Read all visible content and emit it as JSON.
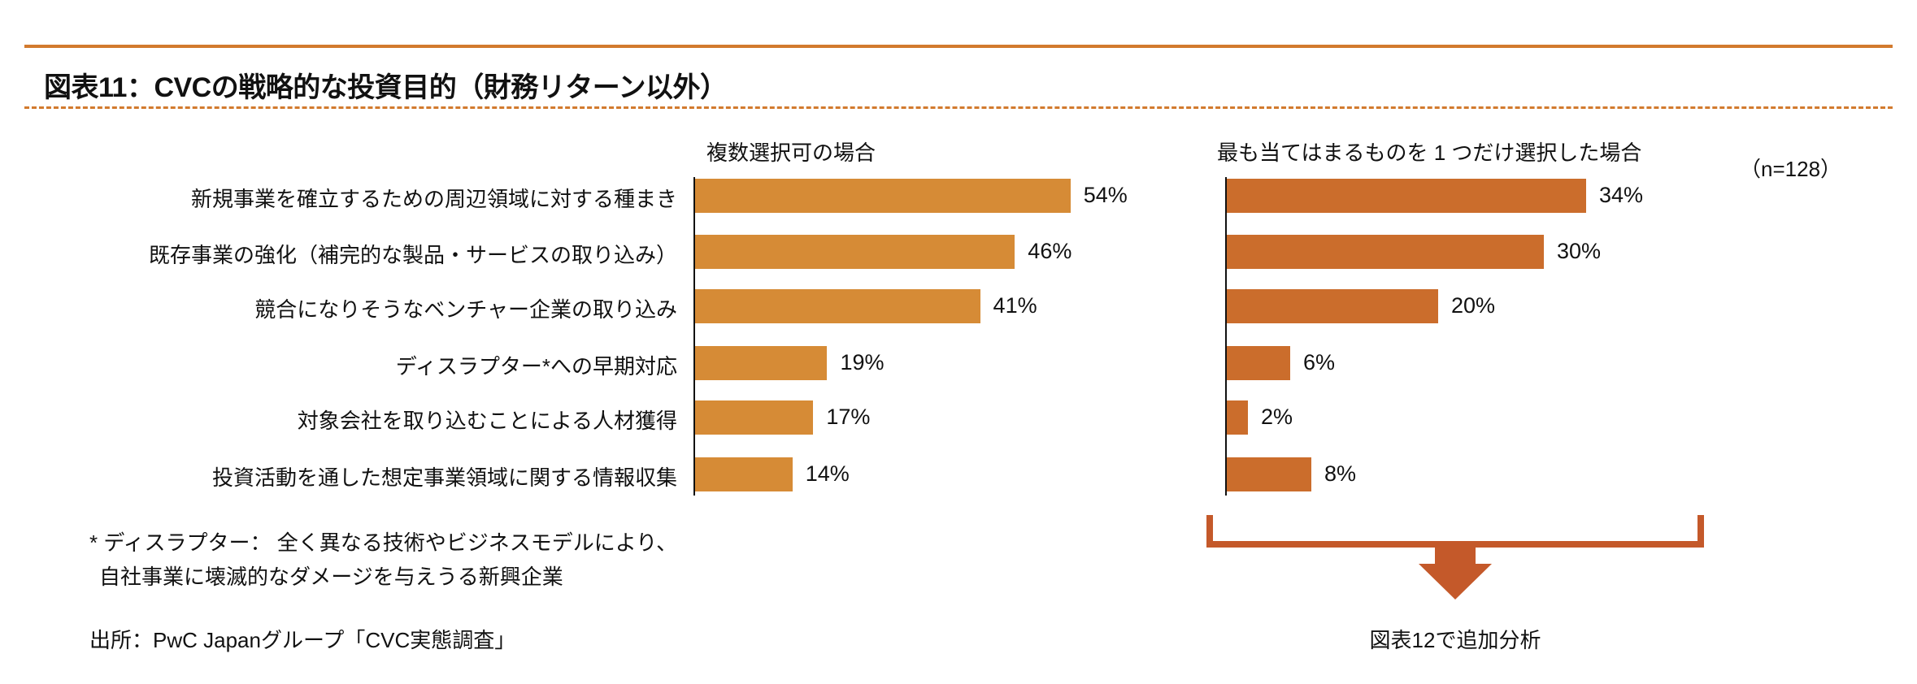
{
  "title": "図表11：CVCの戦略的な投資目的（財務リターン以外）",
  "colors": {
    "rule": "#D27A2E",
    "left_bar": "#D68B36",
    "right_bar": "#CB6D2C",
    "arrow": "#C4592A"
  },
  "chart_data": [
    {
      "type": "bar",
      "orientation": "horizontal",
      "title": "複数選択可の場合",
      "categories": [
        "新規事業を確立するための周辺領域に対する種まき",
        "既存事業の強化（補完的な製品・サービスの取り込み）",
        "競合になりそうなベンチャー企業の取り込み",
        "ディスラプター*への早期対応",
        "対象会社を取り込むことによる人材獲得",
        "投資活動を通した想定事業領域に関する情報収集"
      ],
      "values": [
        54,
        46,
        41,
        19,
        17,
        14
      ],
      "value_labels": [
        "54%",
        "46%",
        "41%",
        "19%",
        "17%",
        "14%"
      ],
      "unit": "%"
    },
    {
      "type": "bar",
      "orientation": "horizontal",
      "title": "最も当てはまるものを 1 つだけ選択した場合",
      "sample": "（n=128）",
      "categories": [
        "新規事業を確立するための周辺領域に対する種まき",
        "既存事業の強化（補完的な製品・サービスの取り込み）",
        "競合になりそうなベンチャー企業の取り込み",
        "ディスラプター*への早期対応",
        "対象会社を取り込むことによる人材獲得",
        "投資活動を通した想定事業領域に関する情報収集"
      ],
      "values": [
        34,
        30,
        20,
        6,
        2,
        8
      ],
      "value_labels": [
        "34%",
        "30%",
        "20%",
        "6%",
        "2%",
        "8%"
      ],
      "unit": "%"
    }
  ],
  "footnote": [
    "* ディスラプター： 全く異なる技術やビジネスモデルにより、",
    "自社事業に壊滅的なダメージを与えうる新興企業"
  ],
  "source": "出所：PwC Japanグループ「CVC実態調査」",
  "arrow_label": "図表12で追加分析"
}
